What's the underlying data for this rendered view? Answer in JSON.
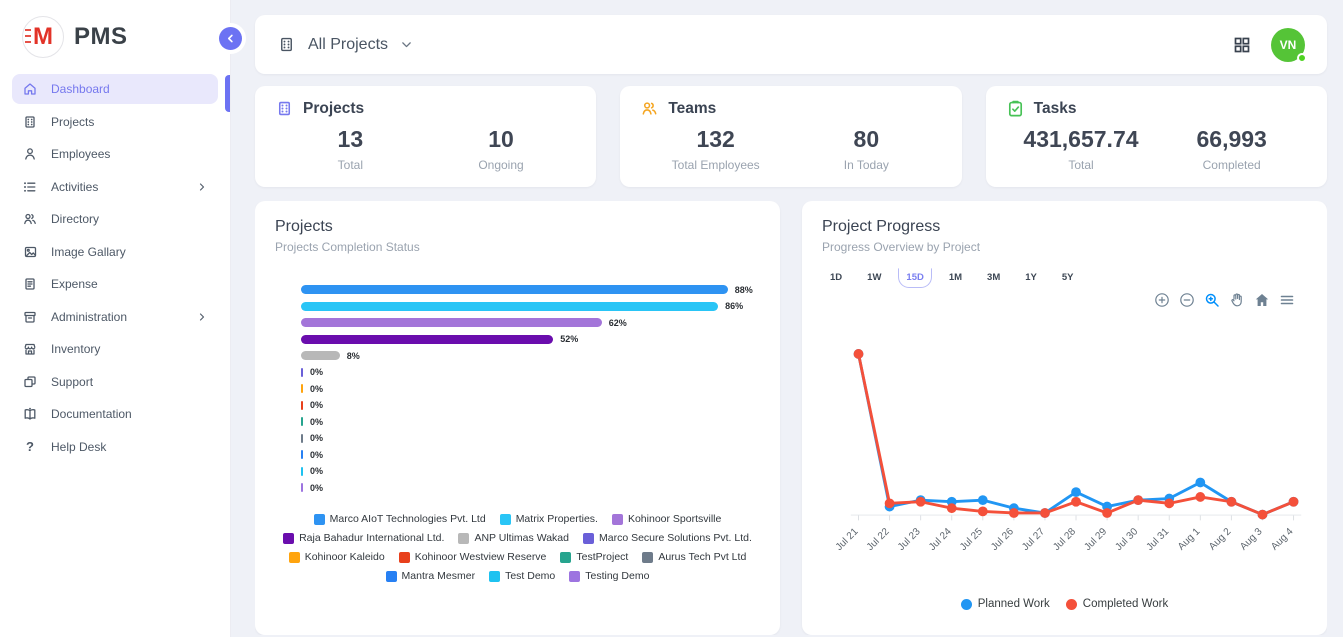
{
  "app": {
    "name": "PMS"
  },
  "topbar": {
    "project_filter": "All Projects",
    "avatar_initials": "VN"
  },
  "sidebar": {
    "items": [
      {
        "label": "Dashboard",
        "icon": "home",
        "active": true
      },
      {
        "label": "Projects",
        "icon": "building"
      },
      {
        "label": "Employees",
        "icon": "person"
      },
      {
        "label": "Activities",
        "icon": "list",
        "has_submenu": true
      },
      {
        "label": "Directory",
        "icon": "people"
      },
      {
        "label": "Image Gallary",
        "icon": "image"
      },
      {
        "label": "Expense",
        "icon": "receipt"
      },
      {
        "label": "Administration",
        "icon": "archive",
        "has_submenu": true
      },
      {
        "label": "Inventory",
        "icon": "store"
      },
      {
        "label": "Support",
        "icon": "copy"
      },
      {
        "label": "Documentation",
        "icon": "book"
      },
      {
        "label": "Help Desk",
        "icon": "question"
      }
    ]
  },
  "stats": [
    {
      "title": "Projects",
      "icon": "building-icon",
      "accent": "#7678ee",
      "metrics": [
        {
          "value": "13",
          "label": "Total"
        },
        {
          "value": "10",
          "label": "Ongoing"
        }
      ]
    },
    {
      "title": "Teams",
      "icon": "people-icon",
      "accent": "#f5a623",
      "metrics": [
        {
          "value": "132",
          "label": "Total Employees"
        },
        {
          "value": "80",
          "label": "In Today"
        }
      ]
    },
    {
      "title": "Tasks",
      "icon": "clipboard-check-icon",
      "accent": "#47c256",
      "metrics": [
        {
          "value": "431,657.74",
          "label": "Total"
        },
        {
          "value": "66,993",
          "label": "Completed"
        }
      ]
    }
  ],
  "projects_card": {
    "title": "Projects",
    "subtitle": "Projects Completion Status"
  },
  "progress_card": {
    "title": "Project Progress",
    "subtitle": "Progress Overview by Project",
    "ranges": [
      "1D",
      "1W",
      "15D",
      "1M",
      "3M",
      "1Y",
      "5Y"
    ],
    "selected_range": "15D",
    "toolbar_icons": [
      "zoom-in",
      "zoom-out",
      "selection-zoom",
      "pan",
      "reset-home",
      "menu"
    ]
  },
  "chart_data": [
    {
      "type": "bar",
      "orientation": "horizontal",
      "title": "Projects",
      "subtitle": "Projects Completion Status",
      "unit": "%",
      "xlim": [
        0,
        100
      ],
      "categories": [
        "Marco AIoT Technologies Pvt. Ltd",
        "Matrix Properties.",
        "Kohinoor Sportsville",
        "Raja Bahadur International Ltd.",
        "ANP Ultimas Wakad",
        "Marco Secure Solutions Pvt. Ltd.",
        "Kohinoor Kaleido",
        "Kohinoor Westview Reserve",
        "TestProject",
        "Aurus Tech Pvt Ltd",
        "Mantra Mesmer",
        "Test Demo",
        "Testing Demo"
      ],
      "values": [
        88,
        86,
        62,
        52,
        8,
        0,
        0,
        0,
        0,
        0,
        0,
        0,
        0
      ],
      "colors": [
        "#2e93f2",
        "#29c5f6",
        "#a375d9",
        "#6a0dad",
        "#b8b8b8",
        "#6a5fd8",
        "#ffa40e",
        "#e8401c",
        "#26a48e",
        "#6e7b8a",
        "#2780f3",
        "#1ec2f0",
        "#9d74e0"
      ]
    },
    {
      "type": "line",
      "title": "Project Progress",
      "categories": [
        "Jul 21",
        "Jul 22",
        "Jul 23",
        "Jul 24",
        "Jul 25",
        "Jul 26",
        "Jul 27",
        "Jul 28",
        "Jul 29",
        "Jul 30",
        "Jul 31",
        "Aug 1",
        "Aug 2",
        "Aug 3",
        "Aug 4"
      ],
      "series": [
        {
          "name": "Planned Work",
          "color": "#2196f3",
          "values": [
            100,
            5,
            9,
            8,
            9,
            4,
            1,
            14,
            5,
            9,
            10,
            20,
            8,
            0,
            8
          ]
        },
        {
          "name": "Completed Work",
          "color": "#f4503a",
          "values": [
            100,
            7,
            8,
            4,
            2,
            1,
            1,
            8,
            1,
            9,
            7,
            11,
            8,
            0,
            8
          ]
        }
      ],
      "ylim": [
        0,
        110
      ],
      "grid": false,
      "legend_position": "bottom"
    }
  ]
}
